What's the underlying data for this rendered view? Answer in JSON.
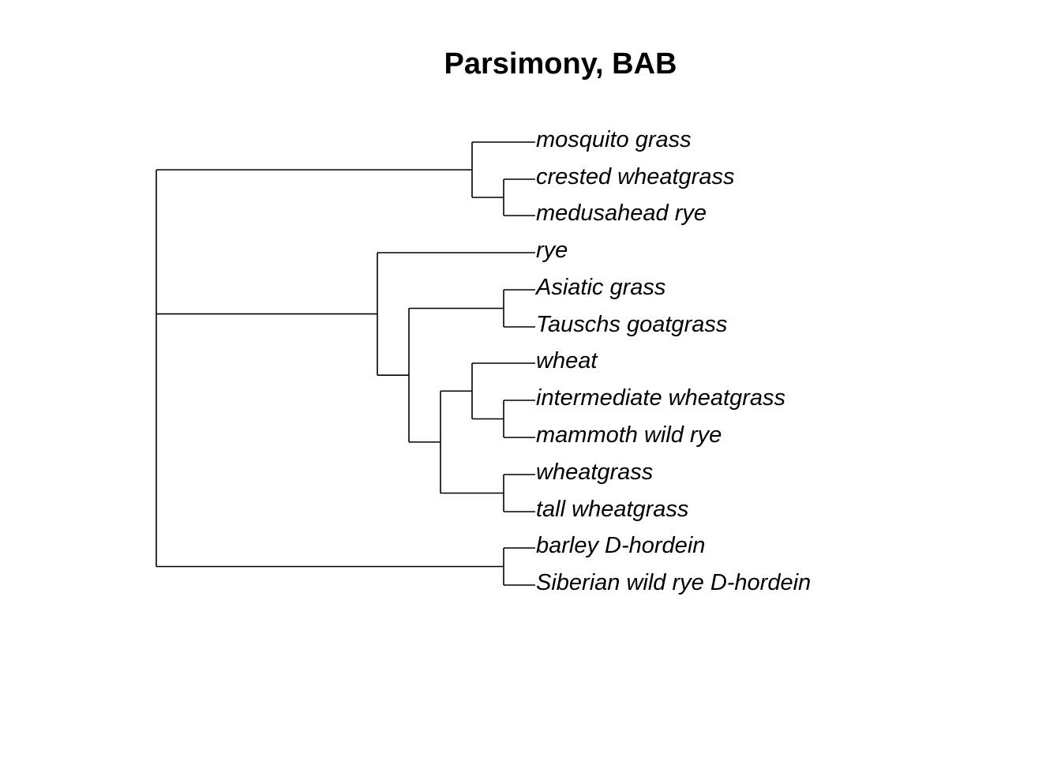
{
  "title": "Parsimony, BAB",
  "tree": {
    "children": [
      {
        "children": [
          {
            "label": "mosquito grass"
          },
          {
            "children": [
              {
                "label": "crested wheatgrass"
              },
              {
                "label": "medusahead rye"
              }
            ]
          }
        ]
      },
      {
        "children": [
          {
            "label": "rye"
          },
          {
            "children": [
              {
                "children": [
                  {
                    "label": "Asiatic grass"
                  },
                  {
                    "label": "Tauschs goatgrass"
                  }
                ]
              },
              {
                "children": [
                  {
                    "children": [
                      {
                        "label": "wheat"
                      },
                      {
                        "children": [
                          {
                            "label": "intermediate wheatgrass"
                          },
                          {
                            "label": "mammoth wild rye"
                          }
                        ]
                      }
                    ]
                  },
                  {
                    "children": [
                      {
                        "label": "wheatgrass"
                      },
                      {
                        "label": "tall wheatgrass"
                      }
                    ]
                  }
                ]
              }
            ]
          }
        ]
      },
      {
        "children": [
          {
            "label": "barley D-hordein"
          },
          {
            "label": "Siberian wild rye D-hordein"
          }
        ]
      }
    ]
  }
}
